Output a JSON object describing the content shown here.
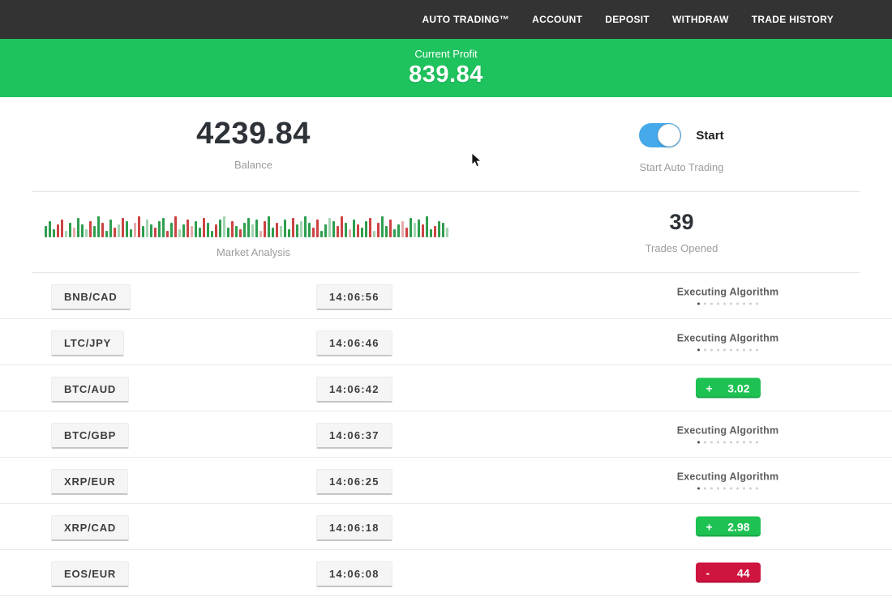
{
  "navbar": {
    "items": [
      {
        "label": "AUTO TRADING™"
      },
      {
        "label": "ACCOUNT"
      },
      {
        "label": "DEPOSIT"
      },
      {
        "label": "WITHDRAW"
      },
      {
        "label": "TRADE HISTORY"
      }
    ]
  },
  "profit_banner": {
    "label": "Current Profit",
    "value": "839.84"
  },
  "balance": {
    "value": "4239.84",
    "label": "Balance"
  },
  "auto_trading": {
    "toggle_label": "Start",
    "toggle_state": "on",
    "label": "Start Auto Trading"
  },
  "market_analysis": {
    "label": "Market Analysis",
    "palette": [
      "#2e9e4f",
      "#cc4343",
      "#a3d4b1",
      "#e3abab"
    ],
    "bars": [
      [
        14,
        0
      ],
      [
        20,
        0
      ],
      [
        10,
        0
      ],
      [
        16,
        1
      ],
      [
        22,
        1
      ],
      [
        8,
        2
      ],
      [
        18,
        0
      ],
      [
        12,
        3
      ],
      [
        24,
        0
      ],
      [
        16,
        0
      ],
      [
        10,
        2
      ],
      [
        20,
        1
      ],
      [
        14,
        0
      ],
      [
        26,
        0
      ],
      [
        18,
        1
      ],
      [
        8,
        0
      ],
      [
        22,
        0
      ],
      [
        12,
        1
      ],
      [
        16,
        2
      ],
      [
        24,
        1
      ],
      [
        20,
        0
      ],
      [
        10,
        0
      ],
      [
        18,
        3
      ],
      [
        26,
        1
      ],
      [
        14,
        0
      ],
      [
        22,
        2
      ],
      [
        16,
        0
      ],
      [
        12,
        1
      ],
      [
        20,
        0
      ],
      [
        24,
        0
      ],
      [
        8,
        1
      ],
      [
        18,
        0
      ],
      [
        26,
        1
      ],
      [
        10,
        2
      ],
      [
        16,
        0
      ],
      [
        22,
        1
      ],
      [
        14,
        3
      ],
      [
        20,
        0
      ],
      [
        12,
        0
      ],
      [
        24,
        1
      ],
      [
        18,
        0
      ],
      [
        8,
        0
      ],
      [
        16,
        1
      ],
      [
        22,
        0
      ],
      [
        26,
        2
      ],
      [
        12,
        0
      ],
      [
        20,
        1
      ],
      [
        14,
        0
      ],
      [
        10,
        1
      ],
      [
        18,
        0
      ],
      [
        24,
        0
      ],
      [
        16,
        2
      ],
      [
        22,
        0
      ],
      [
        8,
        3
      ],
      [
        20,
        1
      ],
      [
        26,
        0
      ],
      [
        12,
        0
      ],
      [
        18,
        1
      ],
      [
        14,
        2
      ],
      [
        22,
        0
      ],
      [
        10,
        0
      ],
      [
        24,
        1
      ],
      [
        16,
        0
      ],
      [
        20,
        2
      ],
      [
        26,
        0
      ],
      [
        18,
        0
      ],
      [
        12,
        1
      ],
      [
        22,
        1
      ],
      [
        8,
        0
      ],
      [
        16,
        0
      ],
      [
        24,
        2
      ],
      [
        20,
        0
      ],
      [
        14,
        1
      ],
      [
        26,
        1
      ],
      [
        18,
        0
      ],
      [
        10,
        3
      ],
      [
        22,
        0
      ],
      [
        16,
        1
      ],
      [
        12,
        0
      ],
      [
        20,
        0
      ],
      [
        24,
        1
      ],
      [
        8,
        2
      ],
      [
        18,
        1
      ],
      [
        26,
        0
      ],
      [
        14,
        0
      ],
      [
        22,
        1
      ],
      [
        10,
        0
      ],
      [
        16,
        0
      ],
      [
        20,
        3
      ],
      [
        12,
        1
      ],
      [
        24,
        0
      ],
      [
        18,
        2
      ],
      [
        22,
        0
      ],
      [
        16,
        1
      ],
      [
        26,
        0
      ],
      [
        10,
        0
      ],
      [
        14,
        1
      ],
      [
        20,
        0
      ],
      [
        18,
        0
      ],
      [
        12,
        2
      ]
    ]
  },
  "trades_opened": {
    "value": "39",
    "label": "Trades Opened"
  },
  "trades": [
    {
      "pair": "BNB/CAD",
      "time": "14:06:56",
      "status": "executing",
      "status_label": "Executing Algorithm"
    },
    {
      "pair": "LTC/JPY",
      "time": "14:06:46",
      "status": "executing",
      "status_label": "Executing Algorithm"
    },
    {
      "pair": "BTC/AUD",
      "time": "14:06:42",
      "status": "profit",
      "result_sign": "+",
      "result_value": "3.02"
    },
    {
      "pair": "BTC/GBP",
      "time": "14:06:37",
      "status": "executing",
      "status_label": "Executing Algorithm"
    },
    {
      "pair": "XRP/EUR",
      "time": "14:06:25",
      "status": "executing",
      "status_label": "Executing Algorithm"
    },
    {
      "pair": "XRP/CAD",
      "time": "14:06:18",
      "status": "profit",
      "result_sign": "+",
      "result_value": "2.98"
    },
    {
      "pair": "EOS/EUR",
      "time": "14:06:08",
      "status": "loss",
      "result_sign": "-",
      "result_value": "44"
    }
  ],
  "colors": {
    "navbar_bg": "#323332",
    "banner_green": "#1fc35e",
    "profit_green": "#1dc253",
    "loss_red": "#d01440",
    "toggle_blue": "#45a9ea"
  }
}
